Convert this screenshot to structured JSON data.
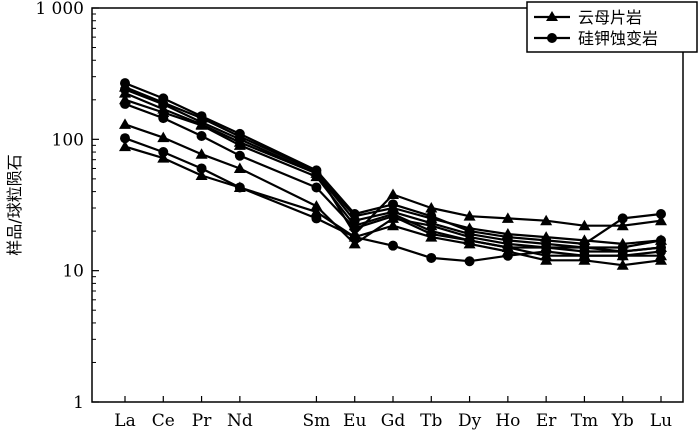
{
  "chart_data": {
    "type": "line",
    "yscale": "log",
    "ylim": [
      1,
      1000
    ],
    "y_ticks": [
      "1",
      "10",
      "100",
      "1 000"
    ],
    "ylabel": "样品/球粒陨石",
    "xlabel": "",
    "categories": [
      "La",
      "Ce",
      "Pr",
      "Nd",
      "Sm",
      "Eu",
      "Gd",
      "Tb",
      "Dy",
      "Ho",
      "Er",
      "Tm",
      "Yb",
      "Lu"
    ],
    "x_positions": [
      1,
      2,
      3,
      4,
      6,
      7,
      8,
      9,
      10,
      11,
      12,
      13,
      14,
      15
    ],
    "legend": {
      "position": "top-right",
      "entries": [
        {
          "label": "云母片岩",
          "marker": "triangle"
        },
        {
          "label": "硅钾蚀变岩",
          "marker": "circle"
        }
      ]
    },
    "series": [
      {
        "group": "云母片岩",
        "marker": "triangle",
        "values": [
          250,
          190,
          145,
          105,
          57,
          19,
          38,
          30,
          26,
          25,
          24,
          22,
          22,
          24
        ]
      },
      {
        "group": "云母片岩",
        "marker": "triangle",
        "values": [
          225,
          170,
          130,
          95,
          55,
          26,
          30,
          25,
          21,
          19,
          18,
          17,
          16,
          17
        ]
      },
      {
        "group": "云母片岩",
        "marker": "triangle",
        "values": [
          130,
          103,
          77,
          60,
          31,
          16,
          25,
          22,
          18,
          16,
          15,
          15,
          14,
          15
        ]
      },
      {
        "group": "云母片岩",
        "marker": "triangle",
        "values": [
          88,
          72,
          53,
          43,
          28,
          18,
          22,
          18,
          16,
          14,
          12,
          12,
          11,
          12
        ]
      },
      {
        "group": "云母片岩",
        "marker": "triangle",
        "values": [
          200,
          160,
          128,
          90,
          52,
          22,
          27,
          20,
          17,
          15,
          13,
          13,
          13,
          13
        ]
      },
      {
        "group": "硅钾蚀变岩",
        "marker": "circle",
        "values": [
          268,
          205,
          150,
          110,
          58,
          27,
          32,
          26,
          20,
          18,
          17,
          16,
          25,
          27
        ]
      },
      {
        "group": "硅钾蚀变岩",
        "marker": "circle",
        "values": [
          240,
          185,
          135,
          100,
          55,
          24,
          28,
          23,
          19,
          17,
          16,
          15,
          15,
          17
        ]
      },
      {
        "group": "硅钾蚀变岩",
        "marker": "circle",
        "values": [
          186,
          145,
          106,
          75,
          43,
          21,
          26,
          19,
          17,
          15,
          15,
          14,
          14,
          15
        ]
      },
      {
        "group": "硅钾蚀变岩",
        "marker": "circle",
        "values": [
          102,
          80,
          60,
          43,
          25,
          18,
          15.5,
          12.5,
          11.8,
          13,
          14,
          13,
          13,
          14
        ]
      }
    ]
  }
}
